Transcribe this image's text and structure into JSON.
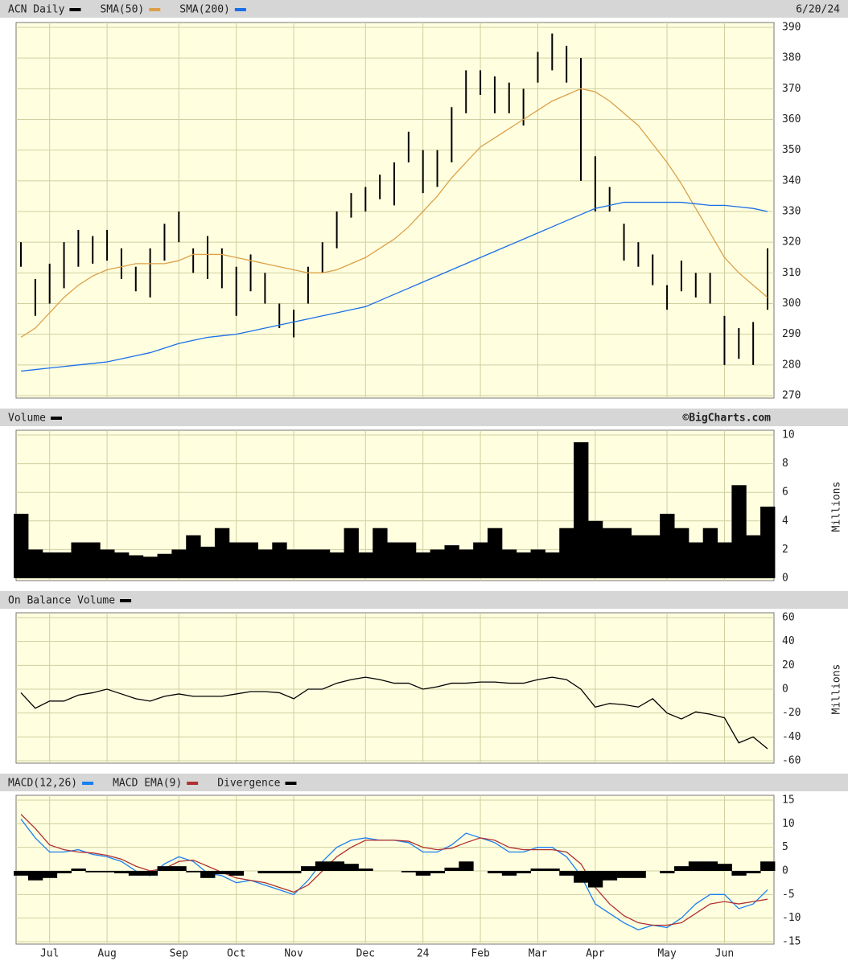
{
  "chart_data": [
    {
      "type": "hilo",
      "date": "6/20/24",
      "ylim": [
        270,
        390
      ],
      "yticks": [
        270,
        280,
        290,
        300,
        310,
        320,
        330,
        340,
        350,
        360,
        370,
        380,
        390
      ],
      "series": [
        {
          "name": "ACN Daily",
          "color": "#000000",
          "high": [
            320,
            308,
            313,
            320,
            324,
            322,
            324,
            318,
            312,
            318,
            326,
            330,
            318,
            322,
            318,
            312,
            316,
            310,
            300,
            298,
            312,
            320,
            330,
            336,
            338,
            342,
            346,
            356,
            350,
            350,
            364,
            376,
            376,
            374,
            372,
            370,
            382,
            388,
            384,
            380,
            348,
            338,
            326,
            320,
            316,
            306,
            314,
            310,
            310,
            296,
            292,
            294,
            318
          ],
          "low": [
            312,
            296,
            300,
            305,
            312,
            313,
            314,
            308,
            304,
            302,
            314,
            320,
            310,
            308,
            305,
            296,
            304,
            300,
            292,
            289,
            300,
            310,
            318,
            328,
            330,
            334,
            332,
            346,
            336,
            338,
            346,
            362,
            368,
            362,
            362,
            358,
            372,
            376,
            372,
            340,
            330,
            330,
            314,
            312,
            306,
            298,
            304,
            302,
            300,
            280,
            282,
            280,
            298
          ]
        },
        {
          "name": "SMA(50)",
          "color": "#dca048",
          "values": [
            289,
            292,
            297,
            302,
            306,
            309,
            311,
            312,
            313,
            313,
            313,
            314,
            316,
            316,
            316,
            315,
            314,
            313,
            312,
            311,
            310,
            310,
            311,
            313,
            315,
            318,
            321,
            325,
            330,
            335,
            341,
            346,
            351,
            354,
            357,
            360,
            363,
            366,
            368,
            370,
            369,
            366,
            362,
            358,
            352,
            346,
            339,
            331,
            323,
            315,
            310,
            306,
            302
          ]
        },
        {
          "name": "SMA(200)",
          "color": "#1a6fe8",
          "values": [
            278,
            278.5,
            279,
            279.5,
            280,
            280.5,
            281,
            282,
            283,
            284,
            285.5,
            287,
            288,
            289,
            289.5,
            290,
            291,
            292,
            293,
            294,
            295,
            296,
            297,
            298,
            299,
            301,
            303,
            305,
            307,
            309,
            311,
            313,
            315,
            317,
            319,
            321,
            323,
            325,
            327,
            329,
            331,
            332,
            333,
            333,
            333,
            333,
            333,
            332.5,
            332,
            332,
            331.5,
            331,
            330
          ]
        }
      ]
    },
    {
      "type": "bar",
      "credit": "©BigCharts.com",
      "ylabel": "Millions",
      "ylim": [
        0,
        10
      ],
      "yticks": [
        0,
        2,
        4,
        6,
        8,
        10
      ],
      "series": [
        {
          "name": "Volume",
          "color": "#000000",
          "values": [
            4.5,
            2,
            1.8,
            1.8,
            2.5,
            2.5,
            2,
            1.8,
            1.6,
            1.5,
            1.7,
            2,
            3,
            2.2,
            3.5,
            2.5,
            2.5,
            2,
            2.5,
            2,
            2,
            2,
            1.8,
            3.5,
            1.8,
            3.5,
            2.5,
            2.5,
            1.8,
            2,
            2.3,
            2,
            2.5,
            3.5,
            2,
            1.8,
            2,
            1.8,
            3.5,
            9.5,
            4,
            3.5,
            3.5,
            3,
            3,
            4.5,
            3.5,
            2.5,
            3.5,
            2.5,
            6.5,
            3,
            5
          ]
        }
      ]
    },
    {
      "type": "line",
      "ylabel": "Millions",
      "ylim": [
        -60,
        60
      ],
      "yticks": [
        -60,
        -40,
        -20,
        0,
        20,
        40,
        60
      ],
      "series": [
        {
          "name": "On Balance Volume",
          "color": "#000000",
          "values": [
            -3,
            -16,
            -10,
            -10,
            -5,
            -3,
            0,
            -4,
            -8,
            -10,
            -6,
            -4,
            -6,
            -6,
            -6,
            -4,
            -2,
            -2,
            -3,
            -8,
            0,
            0,
            5,
            8,
            10,
            8,
            5,
            5,
            0,
            2,
            5,
            5,
            6,
            6,
            5,
            5,
            8,
            10,
            8,
            0,
            -15,
            -12,
            -13,
            -15,
            -8,
            -20,
            -25,
            -19,
            -21,
            -24,
            -45,
            -40,
            -50
          ]
        }
      ]
    },
    {
      "type": "line",
      "categories": [
        null,
        null,
        "Jul",
        null,
        null,
        null,
        "Aug",
        null,
        null,
        null,
        null,
        "Sep",
        null,
        null,
        null,
        "Oct",
        null,
        null,
        null,
        "Nov",
        null,
        null,
        null,
        null,
        "Dec",
        null,
        null,
        null,
        "24",
        null,
        null,
        null,
        "Feb",
        null,
        null,
        null,
        "Mar",
        null,
        null,
        null,
        "Apr",
        null,
        null,
        null,
        null,
        "May",
        null,
        null,
        null,
        "Jun",
        null,
        null,
        null
      ],
      "ylim": [
        -15,
        15
      ],
      "yticks": [
        -15,
        -10,
        -5,
        0,
        5,
        10,
        15
      ],
      "series": [
        {
          "name": "MACD(12,26)",
          "color": "#1a7ff0",
          "values": [
            11,
            7,
            4,
            4,
            4.5,
            3.5,
            3,
            2,
            0,
            -1,
            1.5,
            3,
            2,
            -0.5,
            -1,
            -2.5,
            -2,
            -3,
            -4,
            -5,
            -2,
            2,
            5,
            6.5,
            7,
            6.5,
            6.5,
            6,
            4,
            4,
            5.5,
            8,
            7,
            6,
            4,
            4,
            5,
            5,
            3,
            -1,
            -7,
            -9,
            -11,
            -12.5,
            -11.5,
            -12,
            -10,
            -7,
            -5,
            -5,
            -8,
            -7,
            -4
          ]
        },
        {
          "name": "MACD EMA(9)",
          "color": "#b03030",
          "values": [
            12,
            9,
            5.5,
            4.5,
            4,
            3.8,
            3.3,
            2.5,
            1,
            0,
            0.5,
            2,
            2.3,
            1,
            -0.3,
            -1.5,
            -2,
            -2.5,
            -3.5,
            -4.5,
            -3,
            0,
            3,
            5,
            6.5,
            6.5,
            6.5,
            6.3,
            5,
            4.5,
            4.8,
            6,
            7,
            6.5,
            5,
            4.5,
            4.5,
            4.5,
            4,
            1.5,
            -3.5,
            -7,
            -9.5,
            -11,
            -11.5,
            -11.5,
            -11,
            -9,
            -7,
            -6.5,
            -7,
            -6.5,
            -6
          ]
        },
        {
          "name": "Divergence",
          "color": "#000000",
          "kind": "bar",
          "values": [
            -1,
            -2,
            -1.5,
            -0.5,
            0.5,
            -0.3,
            -0.3,
            -0.5,
            -1,
            -1,
            1,
            1,
            -0.3,
            -1.5,
            -0.7,
            -1,
            0,
            -0.5,
            -0.5,
            -0.5,
            1,
            2,
            2,
            1.5,
            0.5,
            0,
            0,
            -0.3,
            -1,
            -0.5,
            0.7,
            2,
            0,
            -0.5,
            -1,
            -0.5,
            0.5,
            0.5,
            -1,
            -2.5,
            -3.5,
            -2,
            -1.5,
            -1.5,
            0,
            -0.5,
            1,
            2,
            2,
            1.5,
            -1,
            -0.5,
            2
          ]
        }
      ]
    }
  ]
}
